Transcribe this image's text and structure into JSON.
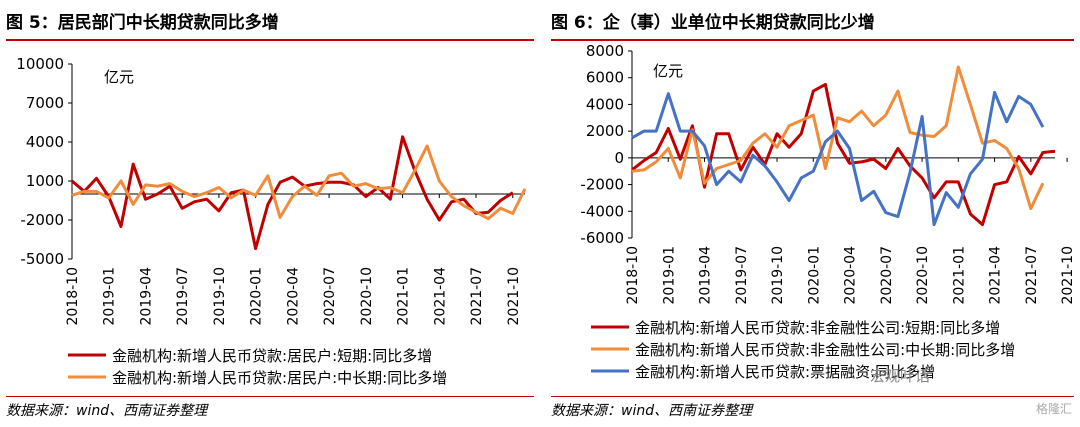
{
  "charts": [
    {
      "title": "图 5：居民部门中长期贷款同比多增",
      "source": "数据来源：wind、西南证券整理",
      "chart_data": {
        "type": "line",
        "unit_label": "亿元",
        "x_ticks": [
          "2018-10",
          "2019-01",
          "2019-04",
          "2019-07",
          "2019-10",
          "2020-01",
          "2020-04",
          "2020-07",
          "2020-10",
          "2021-01",
          "2021-04",
          "2021-07",
          "2021-10"
        ],
        "ylim": [
          -5000,
          10000
        ],
        "y_ticks": [
          10000,
          7000,
          4000,
          1000,
          -2000,
          -5000
        ],
        "grid": false,
        "legend_position": "bottom",
        "series": [
          {
            "name": "金融机构:新增人民币贷款:居民户:短期:同比多增",
            "color": "#c00000",
            "values": [
              1000,
              200,
              1200,
              -200,
              -2500,
              2300,
              -400,
              0,
              600,
              -1100,
              -600,
              -400,
              -1300,
              100,
              300,
              -4200,
              -800,
              900,
              1300,
              600,
              800,
              900,
              900,
              700,
              -200,
              500,
              -400,
              4400,
              1800,
              -400,
              -2000,
              -600,
              -400,
              -1500,
              -1400,
              -500,
              100
            ]
          },
          {
            "name": "金融机构:新增人民币贷款:居民户:中长期:同比多增",
            "color": "#f08c3a",
            "values": [
              -100,
              200,
              200,
              -300,
              1000,
              -800,
              700,
              600,
              800,
              200,
              -200,
              100,
              500,
              -300,
              300,
              -100,
              1400,
              -1800,
              -200,
              600,
              -100,
              1400,
              1600,
              600,
              800,
              400,
              500,
              100,
              1800,
              3700,
              1000,
              -200,
              -900,
              -1400,
              -1900,
              -1100,
              -1500,
              400
            ]
          }
        ]
      }
    },
    {
      "title": "图 6：企（事）业单位中长期贷款同比少增",
      "source": "数据来源：wind、西南证券整理",
      "chart_data": {
        "type": "line",
        "unit_label": "亿元",
        "x_ticks": [
          "2018-10",
          "2019-01",
          "2019-04",
          "2019-07",
          "2019-10",
          "2020-01",
          "2020-04",
          "2020-07",
          "2020-10",
          "2021-01",
          "2021-04",
          "2021-07",
          "2021-10"
        ],
        "ylim": [
          -6000,
          8000
        ],
        "y_ticks": [
          8000,
          6000,
          4000,
          2000,
          0,
          -2000,
          -4000,
          -6000
        ],
        "grid": false,
        "legend_position": "bottom",
        "series": [
          {
            "name": "金融机构:新增人民币贷款:非金融性公司:短期:同比多增",
            "color": "#c00000",
            "values": [
              -900,
              -200,
              400,
              2200,
              -100,
              2400,
              -2200,
              1800,
              1800,
              -900,
              800,
              -500,
              1800,
              800,
              1800,
              5000,
              5500,
              1100,
              -400,
              -300,
              -100,
              -800,
              700,
              -600,
              -1500,
              -3000,
              -1800,
              -1800,
              -4200,
              -5000,
              -2000,
              -1800,
              100,
              -1200,
              400,
              500
            ]
          },
          {
            "name": "金融机构:新增人民币贷款:非金融性公司:中长期:同比多增",
            "color": "#f08c3a",
            "values": [
              -1000,
              -900,
              -300,
              700,
              -1500,
              2100,
              -1900,
              -800,
              -500,
              -200,
              1100,
              1800,
              800,
              2400,
              2800,
              3200,
              -800,
              3000,
              2700,
              3500,
              2400,
              3200,
              5000,
              1900,
              1700,
              1600,
              2400,
              6800,
              4000,
              1100,
              1300,
              700,
              -800,
              -3800,
              -1900
            ]
          },
          {
            "name": "金融机构:新增人民币贷款:票据融资:同比多增",
            "color": "#4472c4",
            "values": [
              1500,
              2000,
              2000,
              4800,
              2000,
              2000,
              900,
              -2000,
              -1000,
              -1800,
              200,
              -600,
              -1800,
              -3200,
              -1500,
              -1000,
              1200,
              2000,
              700,
              -3200,
              -2500,
              -4100,
              -4400,
              -1100,
              3100,
              -5000,
              -2600,
              -3700,
              -1200,
              -100,
              4900,
              2700,
              4600,
              4000,
              2300
            ]
          }
        ]
      }
    }
  ],
  "watermark": "宏观叶话",
  "watermark2": "格隆汇"
}
